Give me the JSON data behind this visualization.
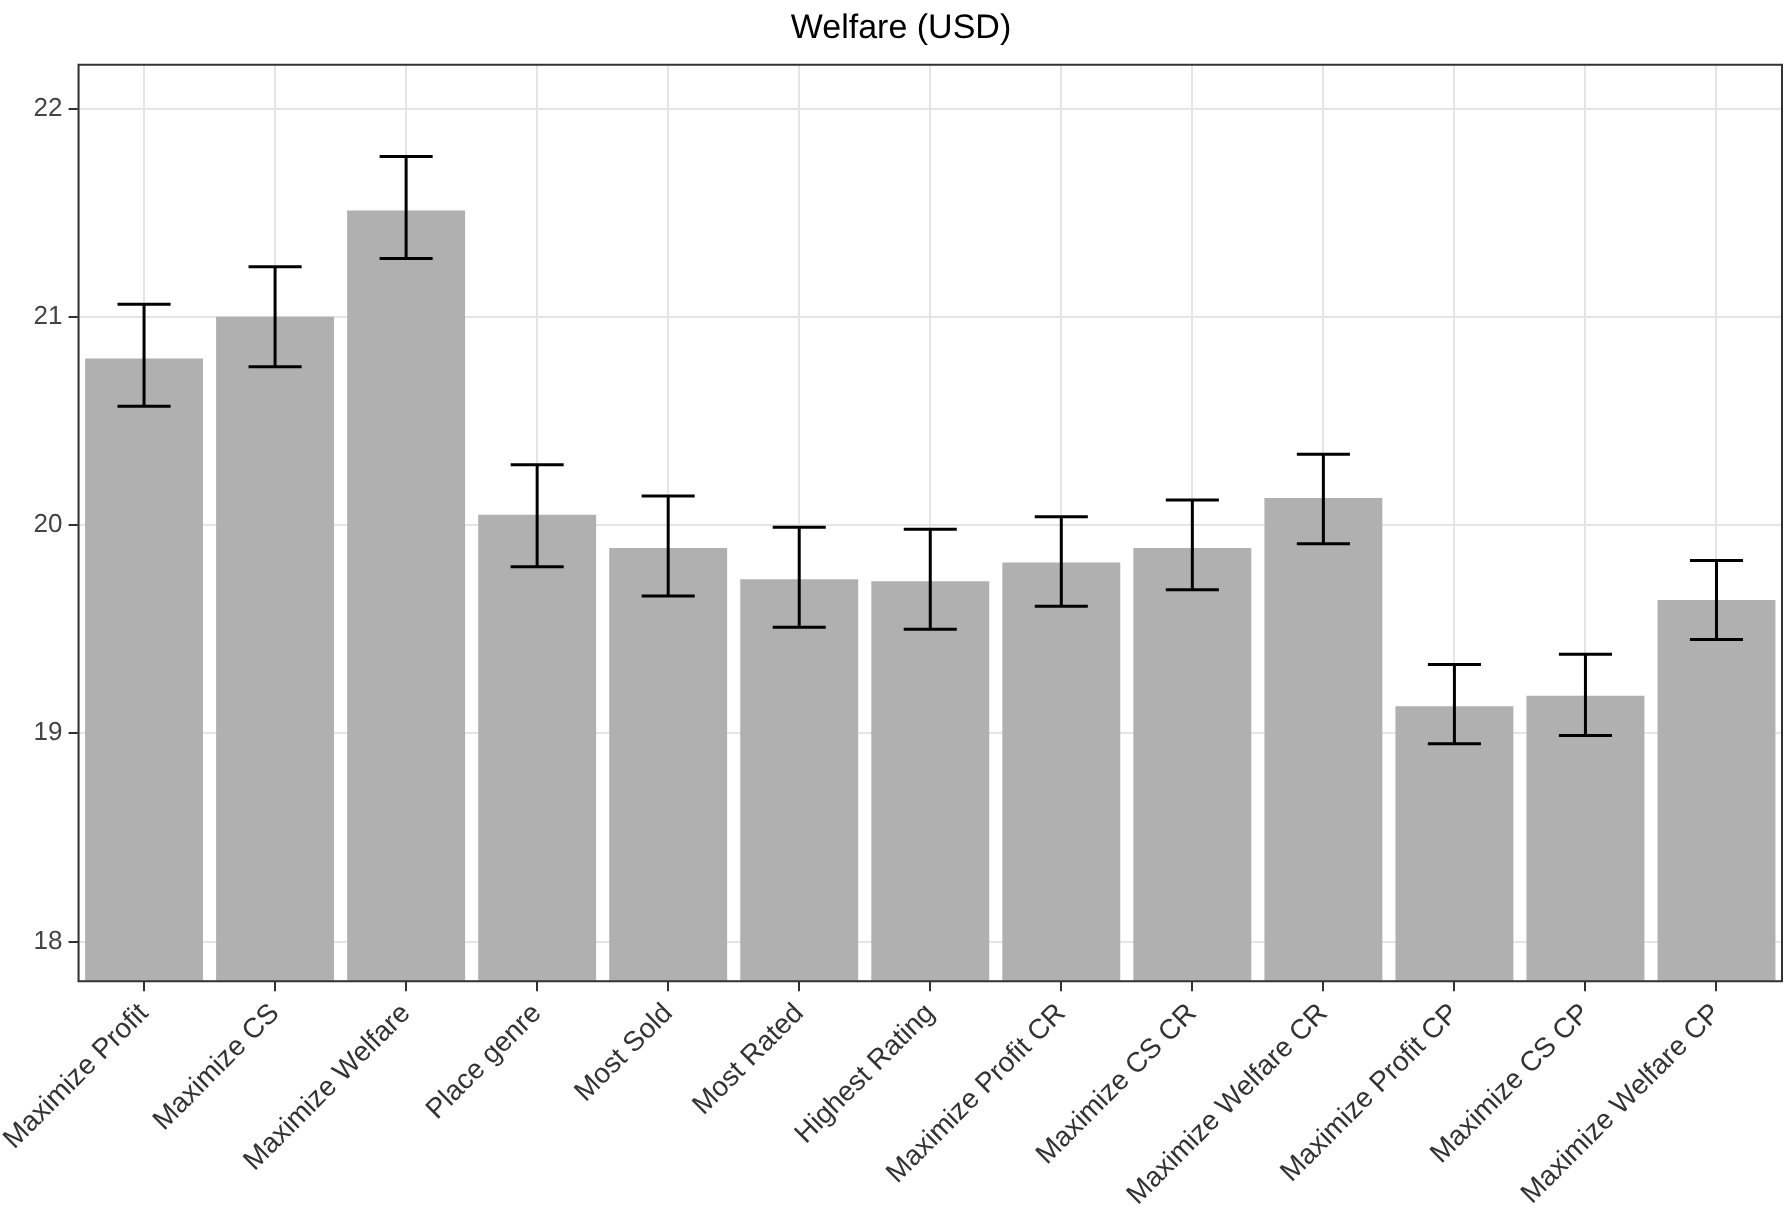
{
  "chart_data": {
    "type": "bar",
    "title": "Welfare (USD)",
    "categories": [
      "Maximize Profit",
      "Maximize CS",
      "Maximize Welfare",
      "Place genre",
      "Most Sold",
      "Most Rated",
      "Highest Rating",
      "Maximize Profit CR",
      "Maximize CS CR",
      "Maximize Welfare CR",
      "Maximize Profit CP",
      "Maximize CS CP",
      "Maximize Welfare CP"
    ],
    "values": [
      20.8,
      21.0,
      21.51,
      20.05,
      19.89,
      19.74,
      19.73,
      19.82,
      19.89,
      20.13,
      19.13,
      19.18,
      19.64
    ],
    "errors": [
      [
        20.57,
        21.06
      ],
      [
        20.76,
        21.24
      ],
      [
        21.28,
        21.77
      ],
      [
        19.8,
        20.29
      ],
      [
        19.66,
        20.14
      ],
      [
        19.51,
        19.99
      ],
      [
        19.5,
        19.98
      ],
      [
        19.61,
        20.04
      ],
      [
        19.69,
        20.12
      ],
      [
        19.91,
        20.34
      ],
      [
        18.95,
        19.33
      ],
      [
        18.99,
        19.38
      ],
      [
        19.45,
        19.83
      ]
    ],
    "color": "#b0b0b0",
    "ylim": [
      17.81,
      22.21
    ],
    "yticks": [
      18,
      19,
      20,
      21,
      22
    ],
    "grid": true
  }
}
